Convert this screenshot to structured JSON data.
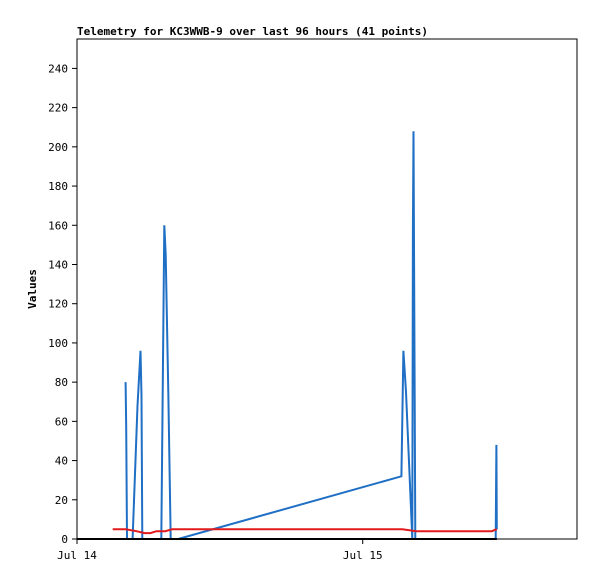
{
  "chart_data": {
    "type": "line",
    "title": "Telemetry for KC3WWB-9 over last 96 hours (41 points)",
    "xlabel": "",
    "ylabel": "Values",
    "ylim": [
      0,
      255
    ],
    "yticks": [
      0,
      20,
      40,
      60,
      80,
      100,
      120,
      140,
      160,
      180,
      200,
      220,
      240
    ],
    "xlim": [
      "2024-07-14 00:00",
      "2024-07-15 18:00"
    ],
    "xticks": [
      {
        "label": "Jul 14",
        "x": "2024-07-14 00:00"
      },
      {
        "label": "Jul 15",
        "x": "2024-07-15 00:00"
      }
    ],
    "grid": false,
    "series": [
      {
        "color": "#1f6fc5",
        "points": [
          [
            "2024-07-14 04:05",
            80
          ],
          [
            "2024-07-14 04:08",
            57
          ],
          [
            "2024-07-14 04:12",
            0
          ],
          [
            "2024-07-14 04:40",
            0
          ],
          [
            "2024-07-14 05:05",
            68
          ],
          [
            "2024-07-14 05:20",
            96
          ],
          [
            "2024-07-14 05:25",
            73
          ],
          [
            "2024-07-14 05:29",
            0
          ],
          [
            "2024-07-14 07:05",
            0
          ],
          [
            "2024-07-14 07:20",
            160
          ],
          [
            "2024-07-14 07:27",
            145
          ],
          [
            "2024-07-14 07:40",
            75
          ],
          [
            "2024-07-14 07:52",
            0
          ],
          [
            "2024-07-14 08:30",
            0
          ],
          [
            "2024-07-15 03:15",
            32
          ],
          [
            "2024-07-15 03:25",
            96
          ],
          [
            "2024-07-15 03:38",
            75
          ],
          [
            "2024-07-15 04:10",
            0
          ],
          [
            "2024-07-15 04:13",
            156
          ],
          [
            "2024-07-15 04:16",
            208
          ],
          [
            "2024-07-15 04:25",
            0
          ],
          [
            "2024-07-15 11:10",
            0
          ],
          [
            "2024-07-15 11:14",
            48
          ],
          [
            "2024-07-15 11:16",
            5
          ]
        ]
      },
      {
        "color": "#e31a1c",
        "points": [
          [
            "2024-07-14 03:00",
            5
          ],
          [
            "2024-07-14 04:05",
            5
          ],
          [
            "2024-07-14 05:00",
            4
          ],
          [
            "2024-07-14 05:40",
            3
          ],
          [
            "2024-07-14 06:10",
            3
          ],
          [
            "2024-07-14 06:40",
            4
          ],
          [
            "2024-07-14 07:25",
            4
          ],
          [
            "2024-07-14 08:00",
            5
          ],
          [
            "2024-07-15 03:20",
            5
          ],
          [
            "2024-07-15 04:30",
            4
          ],
          [
            "2024-07-15 10:50",
            4
          ],
          [
            "2024-07-15 11:16",
            5
          ]
        ]
      },
      {
        "color": "#000000",
        "points": [
          [
            "2024-07-14 00:00",
            0
          ],
          [
            "2024-07-15 11:16",
            0
          ]
        ]
      }
    ]
  }
}
